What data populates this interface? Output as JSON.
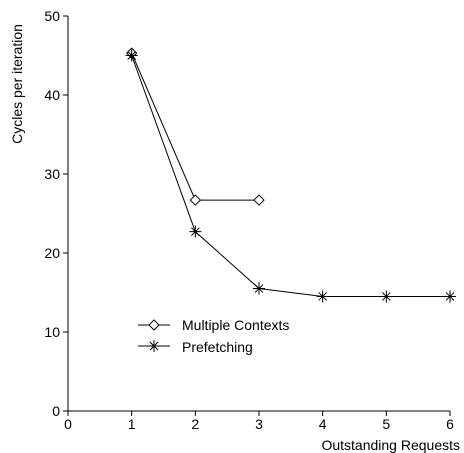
{
  "chart_data": {
    "type": "line",
    "title": "",
    "xlabel": "Outstanding Requests",
    "ylabel": "Cycles per iteration",
    "xlim": [
      0,
      6
    ],
    "ylim": [
      0,
      50
    ],
    "xticks": [
      "0",
      "1",
      "2",
      "3",
      "4",
      "5",
      "6"
    ],
    "yticks": [
      "0",
      "10",
      "20",
      "30",
      "40",
      "50"
    ],
    "grid": false,
    "legend_position": "lower-left",
    "series": [
      {
        "name": "Multiple Contexts",
        "marker": "diamond-icon",
        "x": [
          1,
          2,
          3
        ],
        "y": [
          45.3,
          26.7,
          26.7
        ]
      },
      {
        "name": "Prefetching",
        "marker": "asterisk-icon",
        "x": [
          1,
          2,
          3,
          4,
          5,
          6
        ],
        "y": [
          45.0,
          22.7,
          15.5,
          14.5,
          14.5,
          14.5
        ]
      }
    ],
    "colors": {
      "line": "#000000",
      "background": "#ffffff"
    }
  }
}
